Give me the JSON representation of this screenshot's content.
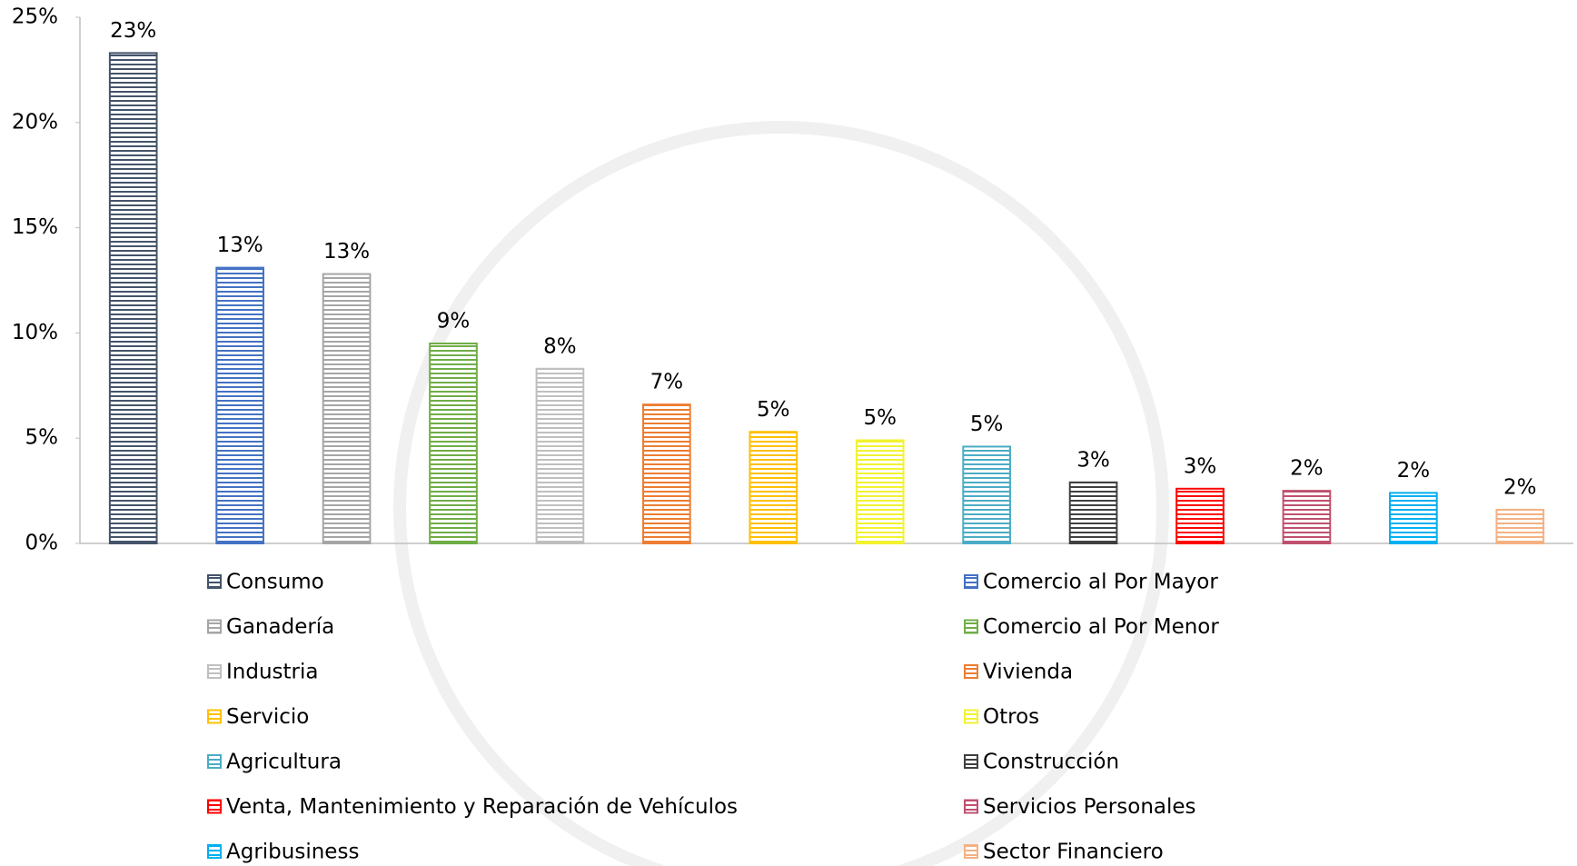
{
  "chart_data": {
    "type": "bar",
    "categories": [
      "Consumo",
      "Comercio al Por Mayor",
      "Ganadería",
      "Comercio al Por Menor",
      "Industria",
      "Vivienda",
      "Servicio",
      "Otros",
      "Agricultura",
      "Construcción",
      "Venta, Mantenimiento y Reparación de Vehículos",
      "Servicios Personales",
      "Agribusiness",
      "Sector Financiero"
    ],
    "values": [
      23.3,
      13.1,
      12.8,
      9.5,
      8.3,
      6.6,
      5.3,
      4.9,
      4.6,
      2.9,
      2.6,
      2.5,
      2.4,
      1.6
    ],
    "value_labels": [
      "23%",
      "13%",
      "13%",
      "9%",
      "8%",
      "7%",
      "5%",
      "5%",
      "5%",
      "3%",
      "3%",
      "2%",
      "2%",
      "2%"
    ],
    "colors": [
      "#44546a",
      "#4472c4",
      "#a5a5a5",
      "#70ad47",
      "#bfbfbf",
      "#ed7d31",
      "#ffc000",
      "#f2f230",
      "#4bacc6",
      "#404040",
      "#ff0000",
      "#c0506e",
      "#00b0f0",
      "#f4b183"
    ],
    "ylim": [
      0,
      25
    ],
    "yticks": [
      {
        "value": 0,
        "label": "0%"
      },
      {
        "value": 5,
        "label": "5%"
      },
      {
        "value": 10,
        "label": "10%"
      },
      {
        "value": 15,
        "label": "15%"
      },
      {
        "value": 20,
        "label": "20%"
      },
      {
        "value": 25,
        "label": "25%"
      }
    ],
    "grid": false,
    "legend": "bottom"
  }
}
